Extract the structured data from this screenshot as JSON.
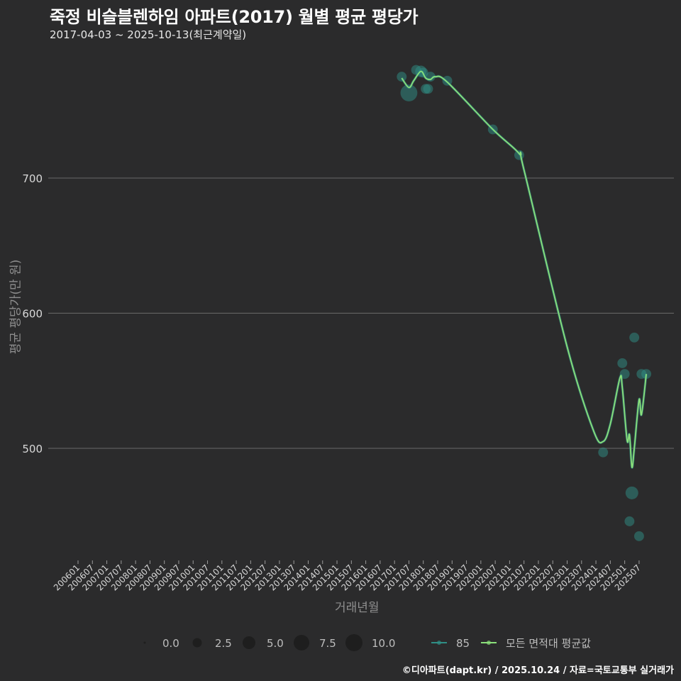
{
  "header": {
    "title": "죽정 비슬블렌하임 아파트(2017) 월별 평균 평당가",
    "subtitle": "2017-04-03 ~ 2025-10-13(최근계약일)"
  },
  "caption": "©디아파트(dapt.kr) / 2025.10.24 / 자료=국토교통부 실거래가",
  "colors": {
    "background": "#2b2b2c",
    "grid": "#6a6a6a",
    "series_85": "#2f8f86",
    "series_avg": "#8be07a"
  },
  "chart_data": {
    "type": "line",
    "title": "죽정 비슬블렌하임 아파트(2017) 월별 평균 평당가",
    "subtitle": "2017-04-03 ~ 2025-10-13(최근계약일)",
    "xlabel": "거래년월",
    "ylabel": "평균 평당가(만 원)",
    "ylim": [
      420,
      790
    ],
    "yticks": [
      500,
      600,
      700
    ],
    "grid": true,
    "x_ticks": [
      "200601",
      "200607",
      "200701",
      "200707",
      "200801",
      "200807",
      "200901",
      "200907",
      "201001",
      "201007",
      "201101",
      "201107",
      "201201",
      "201207",
      "201301",
      "201307",
      "201401",
      "201407",
      "201501",
      "201507",
      "201601",
      "201607",
      "201701",
      "201707",
      "201801",
      "201807",
      "201901",
      "201907",
      "202001",
      "202007",
      "202101",
      "202107",
      "202201",
      "202207",
      "202301",
      "202307",
      "202401",
      "202407",
      "202501",
      "202507"
    ],
    "legend_size": {
      "title": "",
      "values": [
        "0.0",
        "2.5",
        "5.0",
        "7.5",
        "10.0"
      ]
    },
    "legend_series": [
      "85",
      "모든 면적대 평균값"
    ],
    "series": [
      {
        "name": "85",
        "type": "scatter",
        "points": [
          {
            "x": "201704",
            "y": 775,
            "n": 2
          },
          {
            "x": "201707",
            "y": 763,
            "n": 8
          },
          {
            "x": "201710",
            "y": 780,
            "n": 2
          },
          {
            "x": "201712",
            "y": 779,
            "n": 3
          },
          {
            "x": "201801",
            "y": 778,
            "n": 2
          },
          {
            "x": "201802",
            "y": 766,
            "n": 2
          },
          {
            "x": "201803",
            "y": 766,
            "n": 2
          },
          {
            "x": "201804",
            "y": 775,
            "n": 2
          },
          {
            "x": "201811",
            "y": 772,
            "n": 2
          },
          {
            "x": "202006",
            "y": 736,
            "n": 2
          },
          {
            "x": "202105",
            "y": 717,
            "n": 2
          },
          {
            "x": "202404",
            "y": 497,
            "n": 2
          },
          {
            "x": "202412",
            "y": 563,
            "n": 2
          },
          {
            "x": "202501",
            "y": 555,
            "n": 2
          },
          {
            "x": "202503",
            "y": 446,
            "n": 2
          },
          {
            "x": "202504",
            "y": 467,
            "n": 4
          },
          {
            "x": "202505",
            "y": 582,
            "n": 2
          },
          {
            "x": "202507",
            "y": 435,
            "n": 2
          },
          {
            "x": "202508",
            "y": 555,
            "n": 2
          },
          {
            "x": "202510",
            "y": 555,
            "n": 2
          }
        ]
      },
      {
        "name": "모든 면적대 평균값",
        "type": "line",
        "points": [
          {
            "x": "201704",
            "y": 774
          },
          {
            "x": "201707",
            "y": 767
          },
          {
            "x": "201709",
            "y": 772
          },
          {
            "x": "201712",
            "y": 779
          },
          {
            "x": "201802",
            "y": 774
          },
          {
            "x": "201804",
            "y": 773
          },
          {
            "x": "201806",
            "y": 775
          },
          {
            "x": "201811",
            "y": 771
          },
          {
            "x": "202006",
            "y": 736
          },
          {
            "x": "202105",
            "y": 718
          },
          {
            "x": "202107",
            "y": 706
          },
          {
            "x": "202301",
            "y": 575
          },
          {
            "x": "202312",
            "y": 513
          },
          {
            "x": "202404",
            "y": 505
          },
          {
            "x": "202407",
            "y": 518
          },
          {
            "x": "202411",
            "y": 552
          },
          {
            "x": "202412",
            "y": 545
          },
          {
            "x": "202502",
            "y": 506
          },
          {
            "x": "202503",
            "y": 510
          },
          {
            "x": "202504",
            "y": 486
          },
          {
            "x": "202505",
            "y": 500
          },
          {
            "x": "202507",
            "y": 536
          },
          {
            "x": "202508",
            "y": 525
          },
          {
            "x": "202510",
            "y": 555
          }
        ]
      }
    ]
  }
}
